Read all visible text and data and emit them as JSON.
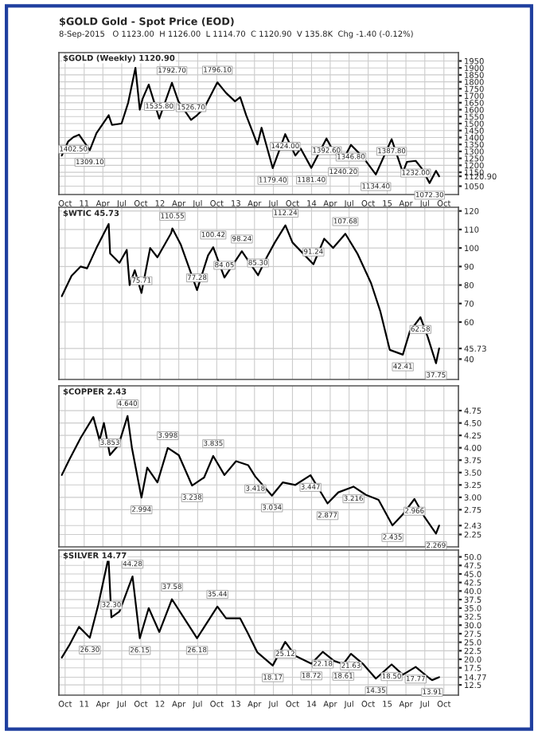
{
  "chart_data": [
    {
      "type": "line",
      "title": "$GOLD Gold - Spot Price (EOD)",
      "subtitle": "8-Sep-2015   O 1123.00  H 1126.00  L 1114.70  C 1120.90  V 135.8K  Chg -1.40 (-0.12%)",
      "x": [
        "2010-09-15",
        "2010-10-15",
        "2010-11-10",
        "2010-12-07",
        "2011-01-28",
        "2011-03-01",
        "2011-04-29",
        "2011-05-15",
        "2011-06-30",
        "2011-08-01",
        "2011-09-05",
        "2011-09-26",
        "2011-10-10",
        "2011-11-08",
        "2011-12-29",
        "2012-02-28",
        "2012-03-30",
        "2012-05-30",
        "2012-06-28",
        "2012-08-01",
        "2012-10-04",
        "2012-11-15",
        "2012-12-28",
        "2013-01-22",
        "2013-02-20",
        "2013-04-15",
        "2013-05-05",
        "2013-06-28",
        "2013-08-27",
        "2013-10-15",
        "2013-11-10",
        "2013-12-31",
        "2014-03-14",
        "2014-04-20",
        "2014-06-03",
        "2014-07-10",
        "2014-09-05",
        "2014-11-07",
        "2015-01-22",
        "2015-03-17",
        "2015-04-06",
        "2015-05-18",
        "2015-06-15",
        "2015-07-24",
        "2015-08-24",
        "2015-09-08"
      ],
      "series": [
        {
          "color": "#000000",
          "values": [
            1270,
            1370,
            1402.5,
            1420,
            1309.1,
            1430,
            1560,
            1490,
            1500,
            1650,
            1900,
            1600,
            1680,
            1780,
            1535.8,
            1792.7,
            1660,
            1526.7,
            1560,
            1610,
            1796.1,
            1720,
            1660,
            1690,
            1560,
            1350,
            1470,
            1179.4,
            1424,
            1270,
            1320,
            1181.4,
            1392.6,
            1290,
            1240.2,
            1346.8,
            1260,
            1134.4,
            1387.8,
            1150,
            1225,
            1232,
            1180,
            1072.3,
            1160,
            1120.9
          ]
        }
      ],
      "xlim": [
        "2010-09-01",
        "2015-12-10"
      ],
      "xticks": [
        {
          "value": "2010-10-01",
          "label": "Oct"
        },
        {
          "value": "2011-01-01",
          "label": "11"
        },
        {
          "value": "2011-04-01",
          "label": "Apr"
        },
        {
          "value": "2011-07-01",
          "label": "Jul"
        },
        {
          "value": "2011-10-01",
          "label": "Oct"
        },
        {
          "value": "2012-01-01",
          "label": "12"
        },
        {
          "value": "2012-04-01",
          "label": "Apr"
        },
        {
          "value": "2012-07-01",
          "label": "Jul"
        },
        {
          "value": "2012-10-01",
          "label": "Oct"
        },
        {
          "value": "2013-01-01",
          "label": "13"
        },
        {
          "value": "2013-04-01",
          "label": "Apr"
        },
        {
          "value": "2013-07-01",
          "label": "Jul"
        },
        {
          "value": "2013-10-01",
          "label": "Oct"
        },
        {
          "value": "2014-01-01",
          "label": "14"
        },
        {
          "value": "2014-04-01",
          "label": "Apr"
        },
        {
          "value": "2014-07-01",
          "label": "Jul"
        },
        {
          "value": "2014-10-01",
          "label": "Oct"
        },
        {
          "value": "2015-01-01",
          "label": "15"
        },
        {
          "value": "2015-04-01",
          "label": "Apr"
        },
        {
          "value": "2015-07-01",
          "label": "Jul"
        },
        {
          "value": "2015-10-01",
          "label": "Oct"
        }
      ],
      "ylim": [
        990,
        2010
      ],
      "yticks": [
        1050,
        {
          "value": 1120.9,
          "label": "1120.90"
        },
        1150,
        1200,
        1250,
        1300,
        1350,
        1400,
        1450,
        1500,
        1550,
        1600,
        1650,
        1700,
        1750,
        1800,
        1850,
        1900,
        1950
      ],
      "grid": true,
      "annotations": [
        "$GOLD (Weekly) 1120.90",
        {
          "text": "1402.50",
          "x": "2010-11-10",
          "y": 1402.5
        },
        {
          "text": "1309.10",
          "x": "2011-01-28",
          "y": 1309.1
        },
        {
          "text": "1535.80",
          "x": "2011-12-29",
          "y": 1535.8
        },
        {
          "text": "1792.70",
          "x": "2012-02-28",
          "y": 1792.7
        },
        {
          "text": "1526.70",
          "x": "2012-05-30",
          "y": 1526.7
        },
        {
          "text": "1796.10",
          "x": "2012-10-04",
          "y": 1796.1
        },
        {
          "text": "1179.40",
          "x": "2013-06-28",
          "y": 1179.4
        },
        {
          "text": "1424.00",
          "x": "2013-08-27",
          "y": 1424
        },
        {
          "text": "1181.40",
          "x": "2013-12-31",
          "y": 1181.4
        },
        {
          "text": "1392.60",
          "x": "2014-03-14",
          "y": 1392.6
        },
        {
          "text": "1240.20",
          "x": "2014-06-03",
          "y": 1240.2
        },
        {
          "text": "1346.80",
          "x": "2014-07-10",
          "y": 1346.8
        },
        {
          "text": "1134.40",
          "x": "2014-11-07",
          "y": 1134.4
        },
        {
          "text": "1387.80",
          "x": "2015-01-22",
          "y": 1387.8
        },
        {
          "text": "1232.00",
          "x": "2015-05-18",
          "y": 1232
        },
        {
          "text": "1072.30",
          "x": "2015-07-24",
          "y": 1072.3
        }
      ]
    },
    {
      "type": "line",
      "x": [
        "2010-09-15",
        "2010-11-01",
        "2010-12-15",
        "2011-01-15",
        "2011-03-01",
        "2011-04-29",
        "2011-05-06",
        "2011-06-20",
        "2011-07-25",
        "2011-08-08",
        "2011-09-02",
        "2011-10-04",
        "2011-11-15",
        "2011-12-20",
        "2012-02-24",
        "2012-03-01",
        "2012-04-10",
        "2012-06-28",
        "2012-08-20",
        "2012-09-14",
        "2012-11-07",
        "2013-01-30",
        "2013-04-18",
        "2013-05-30",
        "2013-07-08",
        "2013-08-28",
        "2013-10-01",
        "2014-01-10",
        "2014-03-03",
        "2014-04-15",
        "2014-06-13",
        "2014-08-10",
        "2014-10-15",
        "2014-11-28",
        "2015-01-13",
        "2015-03-17",
        "2015-04-20",
        "2015-06-10",
        "2015-07-15",
        "2015-08-24",
        "2015-09-08"
      ],
      "series": [
        {
          "color": "#000000",
          "values": [
            74,
            85,
            90,
            89,
            100,
            113,
            97,
            92,
            99,
            80,
            88,
            75.71,
            100,
            95,
            108,
            110.55,
            102,
            77.28,
            96,
            100.42,
            84.05,
            98.24,
            85.3,
            95,
            103,
            112.24,
            103,
            91.24,
            105,
            100,
            107.68,
            97,
            81,
            66,
            45,
            42.41,
            55,
            62.58,
            52,
            37.75,
            45.73
          ]
        }
      ],
      "xlim": [
        "2010-09-01",
        "2015-12-10"
      ],
      "ylim": [
        29,
        122
      ],
      "yticks": [
        40,
        {
          "value": 45.73,
          "label": "45.73"
        },
        60,
        70,
        80,
        90,
        100,
        110,
        120
      ],
      "tick_labels": "y",
      "grid": true,
      "annotations": [
        "$WTIC 45.73",
        {
          "text": "75.71",
          "x": "2011-10-04",
          "y": 75.71
        },
        {
          "text": "110.55",
          "x": "2012-03-01",
          "y": 110.55
        },
        {
          "text": "77.28",
          "x": "2012-06-28",
          "y": 77.28
        },
        {
          "text": "100.42",
          "x": "2012-09-14",
          "y": 100.42
        },
        {
          "text": "84.05",
          "x": "2012-11-07",
          "y": 84.05
        },
        {
          "text": "98.24",
          "x": "2013-01-30",
          "y": 98.24
        },
        {
          "text": "85.30",
          "x": "2013-04-18",
          "y": 85.3
        },
        {
          "text": "112.24",
          "x": "2013-08-28",
          "y": 112.24
        },
        {
          "text": "91.24",
          "x": "2014-01-10",
          "y": 91.24
        },
        {
          "text": "107.68",
          "x": "2014-06-13",
          "y": 107.68
        },
        {
          "text": "42.41",
          "x": "2015-03-17",
          "y": 42.41
        },
        {
          "text": "62.58",
          "x": "2015-06-10",
          "y": 62.58
        },
        {
          "text": "37.75",
          "x": "2015-08-24",
          "y": 37.75
        }
      ]
    },
    {
      "type": "line",
      "x": [
        "2010-09-15",
        "2010-10-20",
        "2010-12-15",
        "2011-02-14",
        "2011-03-16",
        "2011-04-06",
        "2011-05-05",
        "2011-06-15",
        "2011-07-29",
        "2011-08-19",
        "2011-10-04",
        "2011-11-01",
        "2011-12-20",
        "2012-02-08",
        "2012-04-01",
        "2012-06-04",
        "2012-08-01",
        "2012-09-14",
        "2012-11-07",
        "2013-01-02",
        "2013-03-01",
        "2013-04-05",
        "2013-06-24",
        "2013-08-15",
        "2013-10-15",
        "2013-12-27",
        "2014-03-19",
        "2014-05-10",
        "2014-07-22",
        "2014-09-20",
        "2014-11-20",
        "2015-01-26",
        "2015-03-16",
        "2015-05-12",
        "2015-06-30",
        "2015-08-24",
        "2015-09-08"
      ],
      "series": [
        {
          "color": "#000000",
          "values": [
            3.45,
            3.75,
            4.2,
            4.62,
            4.15,
            4.5,
            3.853,
            4.05,
            4.64,
            4.0,
            2.994,
            3.6,
            3.3,
            3.998,
            3.85,
            3.238,
            3.4,
            3.835,
            3.45,
            3.73,
            3.65,
            3.418,
            3.034,
            3.3,
            3.25,
            3.447,
            2.877,
            3.1,
            3.216,
            3.05,
            2.95,
            2.435,
            2.65,
            2.966,
            2.6,
            2.269,
            2.43
          ]
        }
      ],
      "xlim": [
        "2010-09-01",
        "2015-12-10"
      ],
      "ylim": [
        2.0,
        5.25
      ],
      "yticks": [
        {
          "value": 2.25,
          "label": "2.25"
        },
        {
          "value": 2.43,
          "label": "2.43"
        },
        {
          "value": 2.75,
          "label": "2.75"
        },
        {
          "value": 3.0,
          "label": "3.00"
        },
        {
          "value": 3.25,
          "label": "3.25"
        },
        {
          "value": 3.5,
          "label": "3.50"
        },
        {
          "value": 3.75,
          "label": "3.75"
        },
        {
          "value": 4.0,
          "label": "4.00"
        },
        {
          "value": 4.25,
          "label": "4.25"
        },
        {
          "value": 4.5,
          "label": "4.50"
        },
        {
          "value": 4.75,
          "label": "4.75"
        }
      ],
      "tick_labels": "y",
      "grid": true,
      "annotations": [
        "$COPPER 2.43",
        {
          "text": "3.853",
          "x": "2011-05-05",
          "y": 3.853
        },
        {
          "text": "4.640",
          "x": "2011-07-29",
          "y": 4.64
        },
        {
          "text": "2.994",
          "x": "2011-10-04",
          "y": 2.994
        },
        {
          "text": "3.998",
          "x": "2012-02-08",
          "y": 3.998
        },
        {
          "text": "3.238",
          "x": "2012-06-04",
          "y": 3.238
        },
        {
          "text": "3.835",
          "x": "2012-09-14",
          "y": 3.835
        },
        {
          "text": "3.418",
          "x": "2013-04-05",
          "y": 3.418
        },
        {
          "text": "3.034",
          "x": "2013-06-24",
          "y": 3.034
        },
        {
          "text": "3.447",
          "x": "2013-12-27",
          "y": 3.447
        },
        {
          "text": "2.877",
          "x": "2014-03-19",
          "y": 2.877
        },
        {
          "text": "3.216",
          "x": "2014-07-22",
          "y": 3.216
        },
        {
          "text": "2.435",
          "x": "2015-01-26",
          "y": 2.435
        },
        {
          "text": "2.966",
          "x": "2015-05-12",
          "y": 2.966
        },
        {
          "text": "2.269",
          "x": "2015-08-24",
          "y": 2.269
        }
      ]
    },
    {
      "type": "line",
      "x": [
        "2010-09-15",
        "2010-10-20",
        "2010-12-07",
        "2011-01-28",
        "2011-03-10",
        "2011-04-28",
        "2011-05-12",
        "2011-06-20",
        "2011-08-22",
        "2011-09-26",
        "2011-11-08",
        "2011-12-29",
        "2012-02-28",
        "2012-06-28",
        "2012-10-04",
        "2012-11-15",
        "2013-01-22",
        "2013-02-25",
        "2013-04-15",
        "2013-06-28",
        "2013-08-27",
        "2013-10-15",
        "2013-12-31",
        "2014-02-24",
        "2014-04-20",
        "2014-06-03",
        "2014-07-10",
        "2014-09-05",
        "2014-11-07",
        "2015-01-22",
        "2015-03-17",
        "2015-05-18",
        "2015-07-24",
        "2015-08-05",
        "2015-09-08"
      ],
      "series": [
        {
          "color": "#000000",
          "values": [
            20.5,
            24,
            29.5,
            26.3,
            36,
            49.8,
            32.3,
            34,
            44.28,
            26.15,
            35,
            28,
            37.58,
            26.18,
            35.44,
            32,
            32,
            28,
            22,
            18.17,
            25.12,
            21,
            18.72,
            22.18,
            19.5,
            18.61,
            21.63,
            18.7,
            14.35,
            18.5,
            15.5,
            17.77,
            14.4,
            13.91,
            14.77
          ]
        }
      ],
      "xlim": [
        "2010-09-01",
        "2015-12-10"
      ],
      "xticks": [
        {
          "value": "2010-10-01",
          "label": "Oct"
        },
        {
          "value": "2011-01-01",
          "label": "11"
        },
        {
          "value": "2011-04-01",
          "label": "Apr"
        },
        {
          "value": "2011-07-01",
          "label": "Jul"
        },
        {
          "value": "2011-10-01",
          "label": "Oct"
        },
        {
          "value": "2012-01-01",
          "label": "12"
        },
        {
          "value": "2012-04-01",
          "label": "Apr"
        },
        {
          "value": "2012-07-01",
          "label": "Jul"
        },
        {
          "value": "2012-10-01",
          "label": "Oct"
        },
        {
          "value": "2013-01-01",
          "label": "13"
        },
        {
          "value": "2013-04-01",
          "label": "Apr"
        },
        {
          "value": "2013-07-01",
          "label": "Jul"
        },
        {
          "value": "2013-10-01",
          "label": "Oct"
        },
        {
          "value": "2014-01-01",
          "label": "14"
        },
        {
          "value": "2014-04-01",
          "label": "Apr"
        },
        {
          "value": "2014-07-01",
          "label": "Jul"
        },
        {
          "value": "2014-10-01",
          "label": "Oct"
        },
        {
          "value": "2015-01-01",
          "label": "15"
        },
        {
          "value": "2015-04-01",
          "label": "Apr"
        },
        {
          "value": "2015-07-01",
          "label": "Jul"
        },
        {
          "value": "2015-10-01",
          "label": "Oct"
        }
      ],
      "ylim": [
        9.5,
        52
      ],
      "yticks": [
        {
          "value": 12.5,
          "label": "12.5"
        },
        {
          "value": 14.77,
          "label": "14.77"
        },
        {
          "value": 17.5,
          "label": "17.5"
        },
        {
          "value": 20,
          "label": "20.0"
        },
        {
          "value": 22.5,
          "label": "22.5"
        },
        {
          "value": 25,
          "label": "25.0"
        },
        {
          "value": 27.5,
          "label": "27.5"
        },
        {
          "value": 30,
          "label": "30.0"
        },
        {
          "value": 32.5,
          "label": "32.5"
        },
        {
          "value": 35,
          "label": "35.0"
        },
        {
          "value": 37.5,
          "label": "37.5"
        },
        {
          "value": 40,
          "label": "40.0"
        },
        {
          "value": 42.5,
          "label": "42.5"
        },
        {
          "value": 45,
          "label": "45.0"
        },
        {
          "value": 47.5,
          "label": "47.5"
        },
        {
          "value": 50,
          "label": "50.0"
        }
      ],
      "grid": true,
      "annotations": [
        "$SILVER 14.77",
        {
          "text": "26.30",
          "x": "2011-01-28",
          "y": 26.3
        },
        {
          "text": "32.30",
          "x": "2011-05-12",
          "y": 32.3
        },
        {
          "text": "44.28",
          "x": "2011-08-22",
          "y": 44.28
        },
        {
          "text": "26.15",
          "x": "2011-09-26",
          "y": 26.15
        },
        {
          "text": "37.58",
          "x": "2012-02-28",
          "y": 37.58
        },
        {
          "text": "26.18",
          "x": "2012-06-28",
          "y": 26.18
        },
        {
          "text": "35.44",
          "x": "2012-10-04",
          "y": 35.44
        },
        {
          "text": "18.17",
          "x": "2013-06-28",
          "y": 18.17
        },
        {
          "text": "25.12",
          "x": "2013-08-27",
          "y": 25.12
        },
        {
          "text": "18.72",
          "x": "2013-12-31",
          "y": 18.72
        },
        {
          "text": "22.18",
          "x": "2014-02-24",
          "y": 22.18
        },
        {
          "text": "18.61",
          "x": "2014-06-03",
          "y": 18.61
        },
        {
          "text": "21.63",
          "x": "2014-07-10",
          "y": 21.63
        },
        {
          "text": "14.35",
          "x": "2014-11-07",
          "y": 14.35
        },
        {
          "text": "18.50",
          "x": "2015-01-22",
          "y": 18.5
        },
        {
          "text": "17.77",
          "x": "2015-05-18",
          "y": 17.77
        },
        {
          "text": "13.91",
          "x": "2015-08-05",
          "y": 13.91
        }
      ]
    }
  ]
}
